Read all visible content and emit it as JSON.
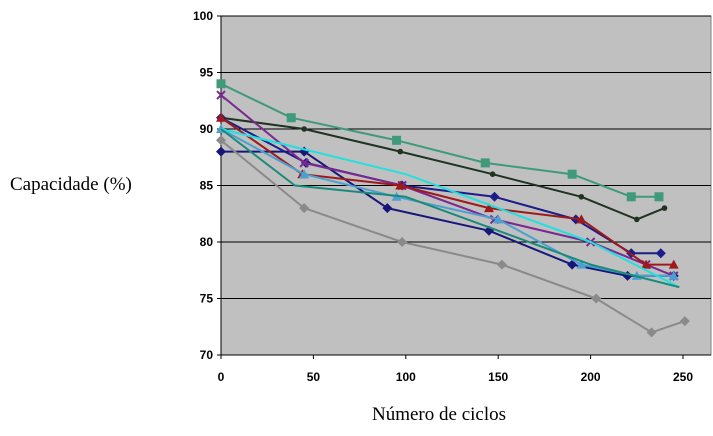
{
  "chart_data": {
    "type": "line",
    "title": "",
    "xlabel": "Número de ciclos",
    "ylabel": "Capacidade (%)",
    "xlim": [
      0,
      260
    ],
    "ylim": [
      70,
      100
    ],
    "xticks": [
      "0",
      "50",
      "100",
      "150",
      "200",
      "250"
    ],
    "yticks": [
      "70",
      "75",
      "80",
      "85",
      "90",
      "95",
      "100"
    ],
    "grid": "horizontal",
    "plot_background": "#c0c0c0",
    "legend": "none",
    "series": [
      {
        "color": "#3e9a7a",
        "marker": "square",
        "points": [
          [
            0,
            94
          ],
          [
            38,
            91
          ],
          [
            95,
            89
          ],
          [
            143,
            87
          ],
          [
            190,
            86
          ],
          [
            222,
            84
          ],
          [
            237,
            84
          ]
        ]
      },
      {
        "color": "#1f3320",
        "marker": "dot",
        "points": [
          [
            0,
            91
          ],
          [
            45,
            90
          ],
          [
            97,
            88
          ],
          [
            147,
            86
          ],
          [
            195,
            84
          ],
          [
            225,
            82
          ],
          [
            240,
            83
          ]
        ]
      },
      {
        "color": "#1c1c8a",
        "marker": "diamond",
        "points": [
          [
            0,
            91
          ],
          [
            46,
            87
          ],
          [
            98,
            85
          ],
          [
            148,
            84
          ],
          [
            192,
            82
          ],
          [
            222,
            79
          ],
          [
            238,
            79
          ]
        ]
      },
      {
        "color": "#17177a",
        "marker": "diamond",
        "points": [
          [
            0,
            88
          ],
          [
            45,
            88
          ],
          [
            90,
            83
          ],
          [
            145,
            81
          ],
          [
            190,
            78
          ],
          [
            220,
            77
          ],
          [
            245,
            77
          ]
        ]
      },
      {
        "color": "#7a2890",
        "marker": "x",
        "points": [
          [
            0,
            93
          ],
          [
            45,
            87
          ],
          [
            98,
            85
          ],
          [
            148,
            82
          ],
          [
            200,
            80
          ],
          [
            230,
            78
          ],
          [
            245,
            77
          ]
        ]
      },
      {
        "color": "#9e1a1a",
        "marker": "triangle",
        "points": [
          [
            0,
            91
          ],
          [
            44,
            86
          ],
          [
            97,
            85
          ],
          [
            145,
            83
          ],
          [
            195,
            82
          ],
          [
            230,
            78
          ],
          [
            245,
            78
          ]
        ]
      },
      {
        "color": "#4aa0d0",
        "marker": "triangle",
        "points": [
          [
            0,
            90
          ],
          [
            45,
            86
          ],
          [
            95,
            84
          ],
          [
            150,
            82
          ],
          [
            195,
            78
          ],
          [
            225,
            77
          ],
          [
            245,
            77
          ]
        ]
      },
      {
        "color": "#20e0e0",
        "marker": "none",
        "points": [
          [
            0,
            90
          ],
          [
            50,
            88
          ],
          [
            100,
            86
          ],
          [
            150,
            83
          ],
          [
            200,
            80
          ],
          [
            248,
            76
          ]
        ]
      },
      {
        "color": "#1a8a7a",
        "marker": "none",
        "points": [
          [
            0,
            90
          ],
          [
            40,
            85
          ],
          [
            100,
            84
          ],
          [
            150,
            81
          ],
          [
            200,
            78
          ],
          [
            248,
            76
          ]
        ]
      },
      {
        "color": "#8a8a8a",
        "marker": "diamond",
        "points": [
          [
            0,
            89
          ],
          [
            45,
            83
          ],
          [
            98,
            80
          ],
          [
            152,
            78
          ],
          [
            203,
            75
          ],
          [
            233,
            72
          ],
          [
            251,
            73
          ]
        ]
      }
    ]
  }
}
